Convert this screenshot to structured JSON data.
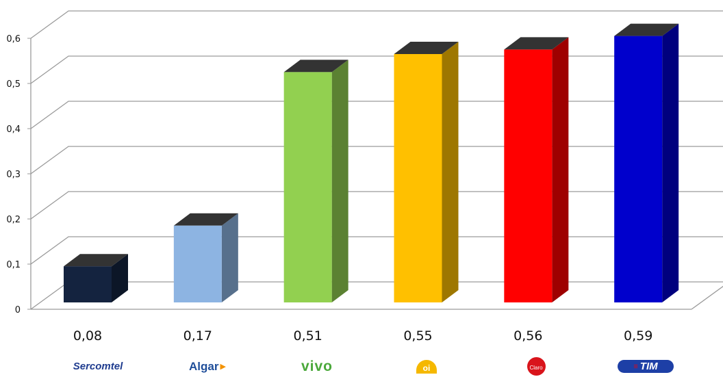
{
  "chart_data": {
    "type": "bar",
    "categories": [
      "Sercomtel",
      "Algar",
      "vivo",
      "oi",
      "Claro",
      "TIM"
    ],
    "values": [
      0.08,
      0.17,
      0.51,
      0.55,
      0.56,
      0.59
    ],
    "value_labels": [
      "0,08",
      "0,17",
      "0,51",
      "0,55",
      "0,56",
      "0,59"
    ],
    "ylim": [
      0,
      0.6
    ],
    "yticks": [
      "0",
      "0,1",
      "0,2",
      "0,3",
      "0,4",
      "0,5",
      "0,6"
    ],
    "grid": true,
    "three_d": true,
    "bar_colors": [
      "#14233f",
      "#8db4e2",
      "#92d050",
      "#ffc000",
      "#ff0000",
      "#0000cc"
    ],
    "title": "",
    "xlabel": "",
    "ylabel": ""
  },
  "logos": [
    {
      "text": "Sercomtel",
      "icon": "sercomtel-logo",
      "color": "#1f3c8f"
    },
    {
      "text": "Algar",
      "icon": "algar-logo",
      "color": "#1f4e9a"
    },
    {
      "text": "vivo",
      "icon": "vivo-logo",
      "color": "#4aa83a"
    },
    {
      "text": "oi",
      "icon": "oi-logo",
      "color": "#f5b800"
    },
    {
      "text": "Claro",
      "icon": "claro-logo",
      "color": "#d9141b"
    },
    {
      "text": "TIM",
      "icon": "tim-logo",
      "color": "#1d3fa6"
    }
  ]
}
